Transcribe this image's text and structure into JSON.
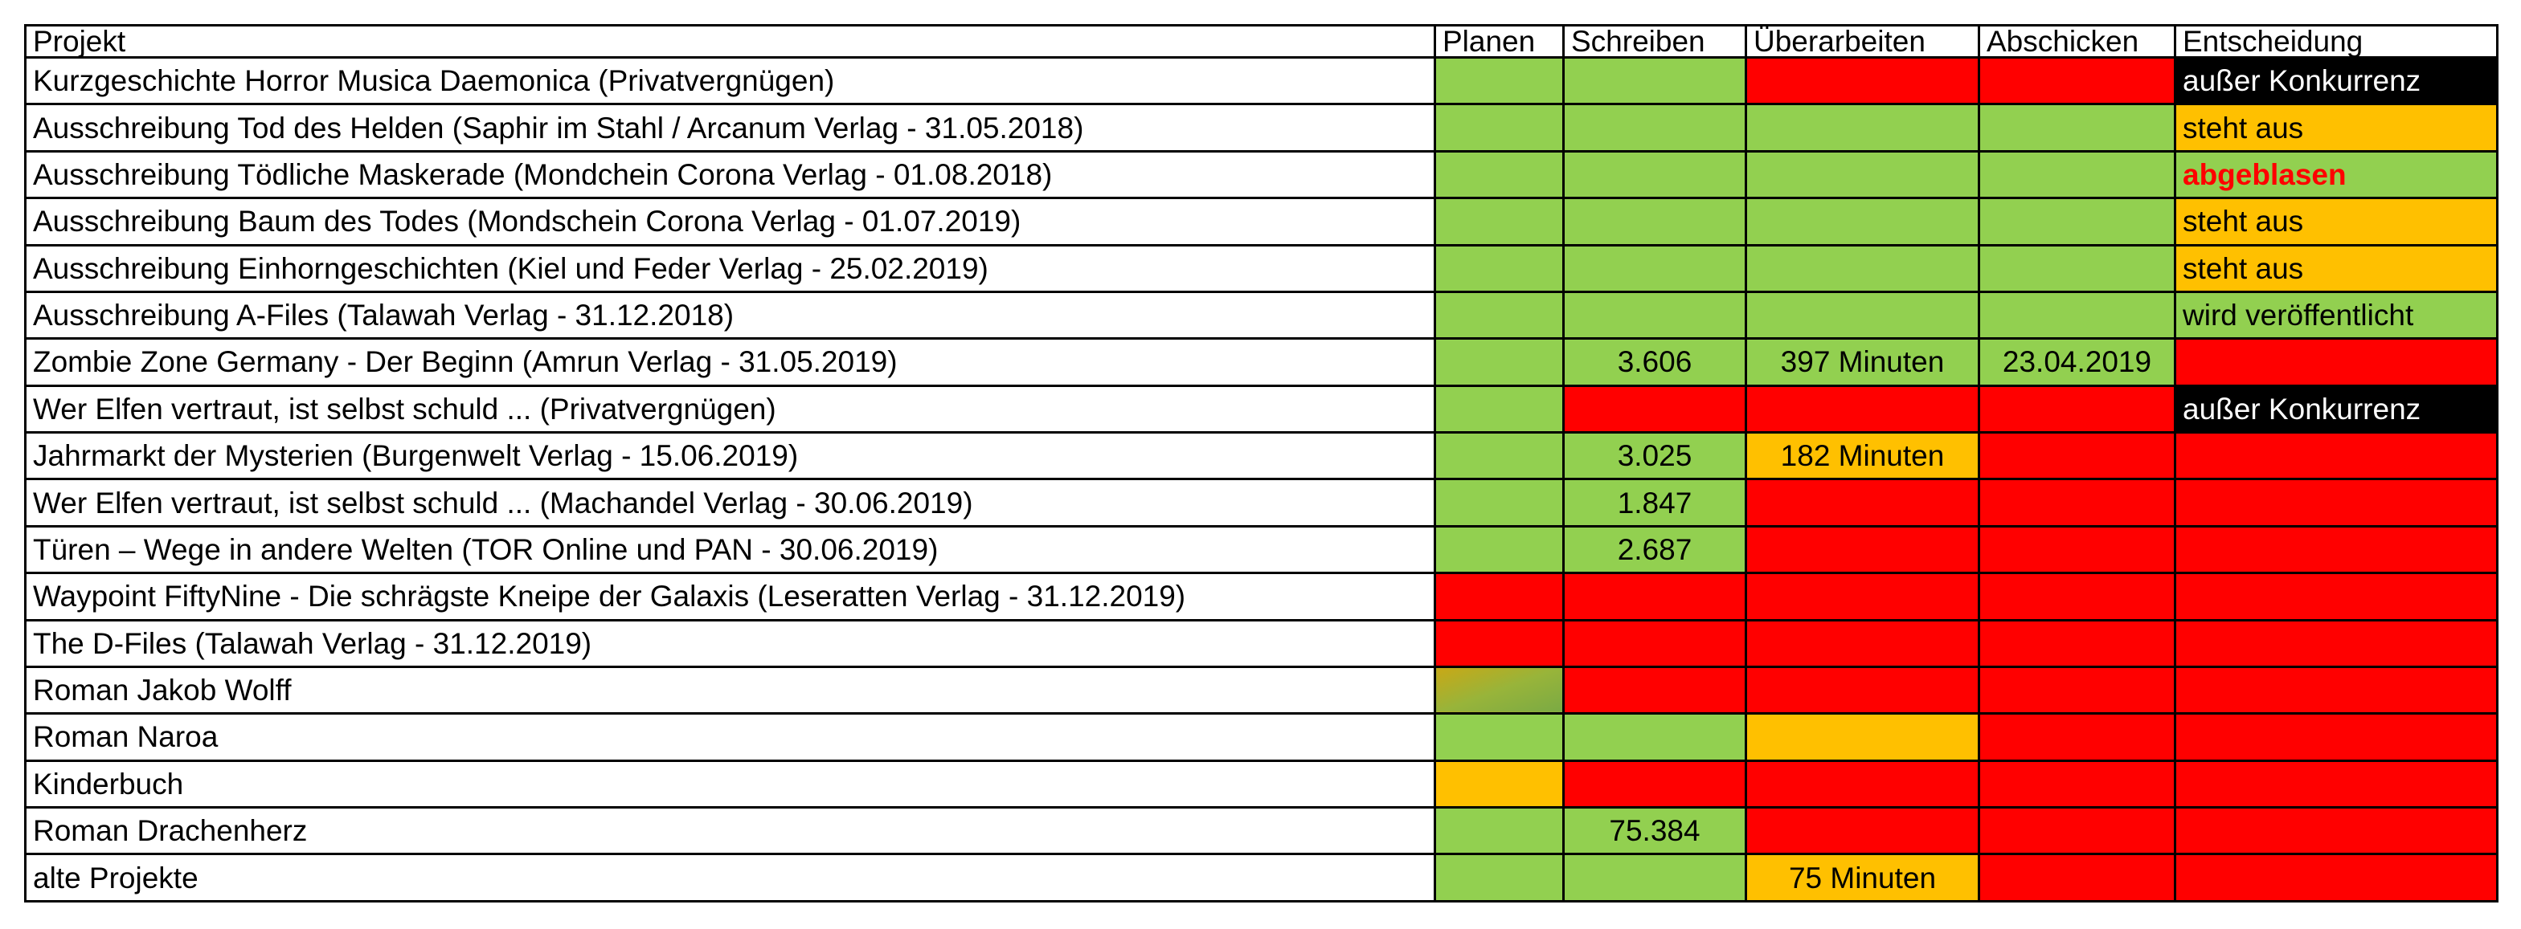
{
  "colors": {
    "green": "#92d050",
    "red": "#ff0000",
    "yellow": "#ffc000",
    "black": "#000000",
    "white": "#ffffff",
    "olive_gradient": "#c9a816"
  },
  "table": {
    "headers": [
      "Projekt",
      "Planen",
      "Schreiben",
      "Überarbeiten",
      "Abschicken",
      "Entscheidung"
    ],
    "rows": [
      {
        "projekt": "Kurzgeschichte Horror Musica Daemonica (Privatvergnügen)",
        "cells": [
          {
            "status": "green"
          },
          {
            "status": "green"
          },
          {
            "status": "red"
          },
          {
            "status": "red"
          },
          {
            "status": "black",
            "text": "außer Konkurrenz",
            "text_color": "white"
          }
        ]
      },
      {
        "projekt": "Ausschreibung Tod des Helden (Saphir im Stahl / Arcanum Verlag - 31.05.2018)",
        "cells": [
          {
            "status": "green"
          },
          {
            "status": "green"
          },
          {
            "status": "green"
          },
          {
            "status": "green"
          },
          {
            "status": "yellow",
            "text": "steht aus"
          }
        ]
      },
      {
        "projekt": "Ausschreibung Tödliche Maskerade (Mondchein Corona Verlag - 01.08.2018)",
        "cells": [
          {
            "status": "green"
          },
          {
            "status": "green"
          },
          {
            "status": "green"
          },
          {
            "status": "green"
          },
          {
            "status": "green",
            "text": "abgeblasen",
            "text_color": "red",
            "bold": true
          }
        ]
      },
      {
        "projekt": "Ausschreibung Baum des Todes (Mondschein Corona Verlag - 01.07.2019)",
        "cells": [
          {
            "status": "green"
          },
          {
            "status": "green"
          },
          {
            "status": "green"
          },
          {
            "status": "green"
          },
          {
            "status": "yellow",
            "text": "steht aus"
          }
        ]
      },
      {
        "projekt": "Ausschreibung Einhorngeschichten (Kiel und Feder Verlag - 25.02.2019)",
        "cells": [
          {
            "status": "green"
          },
          {
            "status": "green"
          },
          {
            "status": "green"
          },
          {
            "status": "green"
          },
          {
            "status": "yellow",
            "text": "steht aus"
          }
        ]
      },
      {
        "projekt": "Ausschreibung A-Files (Talawah Verlag - 31.12.2018)",
        "cells": [
          {
            "status": "green"
          },
          {
            "status": "green"
          },
          {
            "status": "green"
          },
          {
            "status": "green"
          },
          {
            "status": "green",
            "text": "wird veröffentlicht"
          }
        ]
      },
      {
        "projekt": "Zombie Zone Germany - Der Beginn (Amrun Verlag - 31.05.2019)",
        "cells": [
          {
            "status": "green"
          },
          {
            "status": "green",
            "text": "3.606"
          },
          {
            "status": "green",
            "text": "397 Minuten"
          },
          {
            "status": "green",
            "text": "23.04.2019"
          },
          {
            "status": "red"
          }
        ]
      },
      {
        "projekt": "Wer Elfen vertraut, ist selbst schuld ... (Privatvergnügen)",
        "cells": [
          {
            "status": "green"
          },
          {
            "status": "red"
          },
          {
            "status": "red"
          },
          {
            "status": "red"
          },
          {
            "status": "black",
            "text": "außer Konkurrenz",
            "text_color": "white"
          }
        ]
      },
      {
        "projekt": "Jahrmarkt der Mysterien (Burgenwelt Verlag - 15.06.2019)",
        "cells": [
          {
            "status": "green"
          },
          {
            "status": "green",
            "text": "3.025"
          },
          {
            "status": "yellow",
            "text": "182 Minuten"
          },
          {
            "status": "red"
          },
          {
            "status": "red"
          }
        ]
      },
      {
        "projekt": "Wer Elfen vertraut, ist selbst schuld ... (Machandel Verlag - 30.06.2019)",
        "cells": [
          {
            "status": "green"
          },
          {
            "status": "green",
            "text": "1.847"
          },
          {
            "status": "red"
          },
          {
            "status": "red"
          },
          {
            "status": "red"
          }
        ]
      },
      {
        "projekt": "Türen – Wege in andere Welten (TOR Online und PAN - 30.06.2019)",
        "cells": [
          {
            "status": "green"
          },
          {
            "status": "green",
            "text": "2.687"
          },
          {
            "status": "red"
          },
          {
            "status": "red"
          },
          {
            "status": "red"
          }
        ]
      },
      {
        "projekt": "Waypoint FiftyNine - Die schrägste Kneipe der Galaxis (Leseratten Verlag - 31.12.2019)",
        "cells": [
          {
            "status": "red"
          },
          {
            "status": "red"
          },
          {
            "status": "red"
          },
          {
            "status": "red"
          },
          {
            "status": "red"
          }
        ]
      },
      {
        "projekt": "The D-Files (Talawah Verlag - 31.12.2019)",
        "cells": [
          {
            "status": "red"
          },
          {
            "status": "red"
          },
          {
            "status": "red"
          },
          {
            "status": "red"
          },
          {
            "status": "red"
          }
        ]
      },
      {
        "projekt": "Roman Jakob Wolff",
        "cells": [
          {
            "status": "olive_gradient"
          },
          {
            "status": "red"
          },
          {
            "status": "red"
          },
          {
            "status": "red"
          },
          {
            "status": "red"
          }
        ]
      },
      {
        "projekt": "Roman Naroa",
        "cells": [
          {
            "status": "green"
          },
          {
            "status": "green"
          },
          {
            "status": "yellow"
          },
          {
            "status": "red"
          },
          {
            "status": "red"
          }
        ]
      },
      {
        "projekt": "Kinderbuch",
        "cells": [
          {
            "status": "yellow"
          },
          {
            "status": "red"
          },
          {
            "status": "red"
          },
          {
            "status": "red"
          },
          {
            "status": "red"
          }
        ]
      },
      {
        "projekt": "Roman Drachenherz",
        "cells": [
          {
            "status": "green"
          },
          {
            "status": "green",
            "text": "75.384"
          },
          {
            "status": "red"
          },
          {
            "status": "red"
          },
          {
            "status": "red"
          }
        ]
      },
      {
        "projekt": "alte Projekte",
        "cells": [
          {
            "status": "green"
          },
          {
            "status": "green"
          },
          {
            "status": "yellow",
            "text": "75 Minuten"
          },
          {
            "status": "red"
          },
          {
            "status": "red"
          }
        ]
      }
    ]
  }
}
